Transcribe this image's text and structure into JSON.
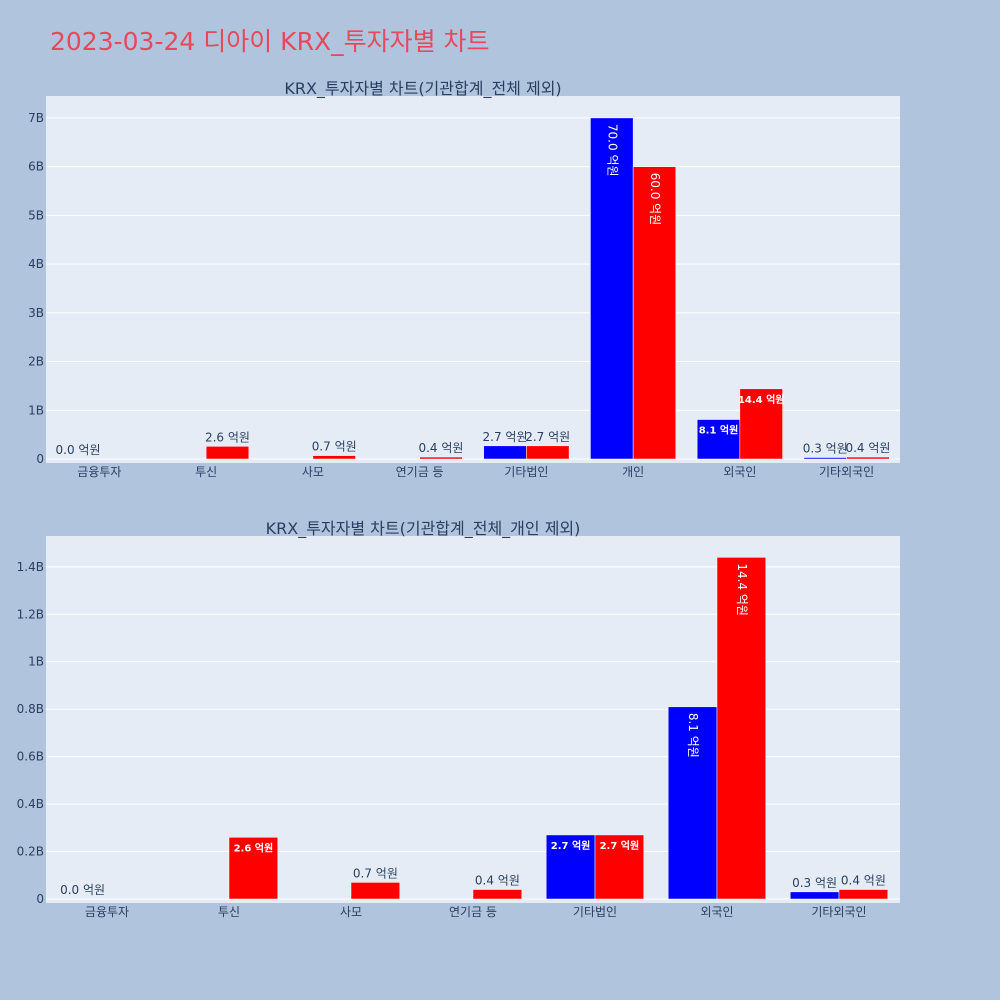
{
  "page": {
    "title": "2023-03-24 디아이 KRX_투자자별 차트"
  },
  "chart_data": [
    {
      "type": "bar",
      "title": "KRX_투자자별 차트(기관합계_전체 제외)",
      "categories": [
        "금융투자",
        "투신",
        "사모",
        "연기금 등",
        "기타법인",
        "개인",
        "외국인",
        "기타외국인"
      ],
      "y_ticks": [
        "0",
        "1B",
        "2B",
        "3B",
        "4B",
        "5B",
        "6B",
        "7B"
      ],
      "ylim": [
        0,
        7450000000
      ],
      "series": [
        {
          "color": "#0000ff",
          "values": [
            0,
            0,
            0,
            0,
            270000000,
            7000000000,
            810000000,
            30000000
          ],
          "labels": [
            "0.0 억원",
            "",
            "",
            "",
            "2.7 억원",
            "70.0 억원",
            "8.1 억원",
            "0.3 억원"
          ]
        },
        {
          "color": "#ff0000",
          "values": [
            0,
            260000000,
            70000000,
            40000000,
            270000000,
            6000000000,
            1440000000,
            40000000
          ],
          "labels": [
            "",
            "2.6 억원",
            "0.7 억원",
            "0.4 억원",
            "2.7 억원",
            "60.0 억원",
            "14.4 억원",
            "0.4 억원"
          ]
        }
      ]
    },
    {
      "type": "bar",
      "title": "KRX_투자자별 차트(기관합계_전체_개인 제외)",
      "categories": [
        "금융투자",
        "투신",
        "사모",
        "연기금 등",
        "기타법인",
        "외국인",
        "기타외국인"
      ],
      "y_ticks": [
        "0",
        "0.2B",
        "0.4B",
        "0.6B",
        "0.8B",
        "1B",
        "1.2B",
        "1.4B"
      ],
      "ylim": [
        0,
        1530000000
      ],
      "series": [
        {
          "color": "#0000ff",
          "values": [
            0,
            0,
            0,
            0,
            270000000,
            810000000,
            30000000
          ],
          "labels": [
            "0.0 억원",
            "",
            "",
            "",
            "2.7 억원",
            "8.1 억원",
            "0.3 억원"
          ]
        },
        {
          "color": "#ff0000",
          "values": [
            0,
            260000000,
            70000000,
            40000000,
            270000000,
            1440000000,
            40000000
          ],
          "labels": [
            "",
            "2.6 억원",
            "0.7 억원",
            "0.4 억원",
            "2.7 억원",
            "14.4 억원",
            "0.4 억원"
          ]
        }
      ]
    }
  ]
}
